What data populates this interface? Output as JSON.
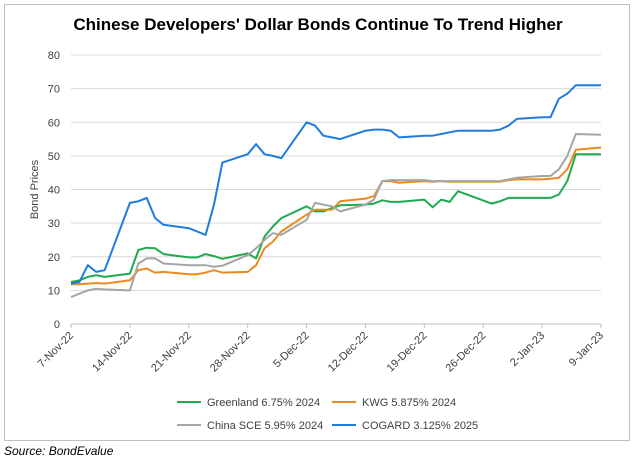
{
  "source": "Source: BondEvalue",
  "chart_data": {
    "type": "line",
    "title": "Chinese Developers' Dollar Bonds Continue To Trend Higher",
    "xlabel": "",
    "ylabel": "Bond Prices",
    "ylim": [
      0,
      80
    ],
    "yticks": [
      0,
      10,
      20,
      30,
      40,
      50,
      60,
      70,
      80
    ],
    "xrange": [
      "2022-11-07",
      "2023-01-09"
    ],
    "xticks": [
      {
        "date": "2022-11-07",
        "label": "7-Nov-22"
      },
      {
        "date": "2022-11-14",
        "label": "14-Nov-22"
      },
      {
        "date": "2022-11-21",
        "label": "21-Nov-22"
      },
      {
        "date": "2022-11-28",
        "label": "28-Nov-22"
      },
      {
        "date": "2022-12-05",
        "label": "5-Dec-22"
      },
      {
        "date": "2022-12-12",
        "label": "12-Dec-22"
      },
      {
        "date": "2022-12-19",
        "label": "19-Dec-22"
      },
      {
        "date": "2022-12-26",
        "label": "26-Dec-22"
      },
      {
        "date": "2023-01-02",
        "label": "2-Jan-23"
      },
      {
        "date": "2023-01-09",
        "label": "9-Jan-23"
      }
    ],
    "grid": true,
    "legend_position": "bottom",
    "series": [
      {
        "name": "Greenland 6.75% 2024",
        "color": "#1faa4f",
        "points": [
          [
            "2022-11-07",
            12.5
          ],
          [
            "2022-11-08",
            13
          ],
          [
            "2022-11-09",
            14
          ],
          [
            "2022-11-10",
            14.5
          ],
          [
            "2022-11-11",
            14
          ],
          [
            "2022-11-14",
            15
          ],
          [
            "2022-11-15",
            22
          ],
          [
            "2022-11-16",
            22.7
          ],
          [
            "2022-11-17",
            22.5
          ],
          [
            "2022-11-18",
            20.8
          ],
          [
            "2022-11-21",
            19.8
          ],
          [
            "2022-11-22",
            19.8
          ],
          [
            "2022-11-23",
            20.8
          ],
          [
            "2022-11-24",
            20.2
          ],
          [
            "2022-11-25",
            19.4
          ],
          [
            "2022-11-28",
            21
          ],
          [
            "2022-11-29",
            19.5
          ],
          [
            "2022-11-30",
            26
          ],
          [
            "2022-12-01",
            29
          ],
          [
            "2022-12-02",
            31.5
          ],
          [
            "2022-12-05",
            35
          ],
          [
            "2022-12-06",
            33.5
          ],
          [
            "2022-12-07",
            33.5
          ],
          [
            "2022-12-08",
            34.5
          ],
          [
            "2022-12-09",
            35.3
          ],
          [
            "2022-12-12",
            35.5
          ],
          [
            "2022-12-13",
            35.8
          ],
          [
            "2022-12-14",
            36.8
          ],
          [
            "2022-12-15",
            36.3
          ],
          [
            "2022-12-16",
            36.3
          ],
          [
            "2022-12-19",
            37
          ],
          [
            "2022-12-20",
            34.7
          ],
          [
            "2022-12-21",
            37
          ],
          [
            "2022-12-22",
            36.3
          ],
          [
            "2022-12-23",
            39.5
          ],
          [
            "2022-12-27",
            35.8
          ],
          [
            "2022-12-28",
            36.5
          ],
          [
            "2022-12-29",
            37.5
          ],
          [
            "2022-12-30",
            37.5
          ],
          [
            "2023-01-02",
            37.5
          ],
          [
            "2023-01-03",
            37.5
          ],
          [
            "2023-01-04",
            38.5
          ],
          [
            "2023-01-05",
            42.5
          ],
          [
            "2023-01-06",
            50.5
          ],
          [
            "2023-01-09",
            50.5
          ]
        ]
      },
      {
        "name": "KWG 5.875% 2024",
        "color": "#ed8a1f",
        "points": [
          [
            "2022-11-07",
            11.8
          ],
          [
            "2022-11-08",
            11.8
          ],
          [
            "2022-11-09",
            12
          ],
          [
            "2022-11-10",
            12.2
          ],
          [
            "2022-11-11",
            12
          ],
          [
            "2022-11-14",
            13
          ],
          [
            "2022-11-15",
            16
          ],
          [
            "2022-11-16",
            16.5
          ],
          [
            "2022-11-17",
            15.3
          ],
          [
            "2022-11-18",
            15.5
          ],
          [
            "2022-11-21",
            14.8
          ],
          [
            "2022-11-22",
            14.8
          ],
          [
            "2022-11-23",
            15.3
          ],
          [
            "2022-11-24",
            16
          ],
          [
            "2022-11-25",
            15.3
          ],
          [
            "2022-11-28",
            15.5
          ],
          [
            "2022-11-29",
            17.5
          ],
          [
            "2022-11-30",
            22.5
          ],
          [
            "2022-12-01",
            24.5
          ],
          [
            "2022-12-02",
            27.5
          ],
          [
            "2022-12-05",
            32.5
          ],
          [
            "2022-12-06",
            34
          ],
          [
            "2022-12-07",
            34
          ],
          [
            "2022-12-08",
            34
          ],
          [
            "2022-12-09",
            36.5
          ],
          [
            "2022-12-12",
            37.3
          ],
          [
            "2022-12-13",
            38
          ],
          [
            "2022-12-14",
            42.5
          ],
          [
            "2022-12-15",
            42.5
          ],
          [
            "2022-12-16",
            42
          ],
          [
            "2022-12-19",
            42.5
          ],
          [
            "2022-12-20",
            42.3
          ],
          [
            "2022-12-21",
            42.5
          ],
          [
            "2022-12-22",
            42.3
          ],
          [
            "2022-12-23",
            42.3
          ],
          [
            "2022-12-27",
            42.3
          ],
          [
            "2022-12-28",
            42.3
          ],
          [
            "2022-12-29",
            42.8
          ],
          [
            "2022-12-30",
            43
          ],
          [
            "2023-01-02",
            43
          ],
          [
            "2023-01-03",
            43.2
          ],
          [
            "2023-01-04",
            43.5
          ],
          [
            "2023-01-05",
            46
          ],
          [
            "2023-01-06",
            51.8
          ],
          [
            "2023-01-09",
            52.5
          ]
        ]
      },
      {
        "name": "China SCE 5.95% 2024",
        "color": "#a5a5a5",
        "points": [
          [
            "2022-11-07",
            8
          ],
          [
            "2022-11-08",
            9
          ],
          [
            "2022-11-09",
            10
          ],
          [
            "2022-11-10",
            10.5
          ],
          [
            "2022-11-11",
            10.3
          ],
          [
            "2022-11-14",
            10
          ],
          [
            "2022-11-15",
            18
          ],
          [
            "2022-11-16",
            19.5
          ],
          [
            "2022-11-17",
            19.5
          ],
          [
            "2022-11-18",
            18
          ],
          [
            "2022-11-21",
            17.5
          ],
          [
            "2022-11-22",
            17.5
          ],
          [
            "2022-11-23",
            17.5
          ],
          [
            "2022-11-24",
            17
          ],
          [
            "2022-11-25",
            17.3
          ],
          [
            "2022-11-28",
            20.5
          ],
          [
            "2022-11-29",
            22.5
          ],
          [
            "2022-11-30",
            25
          ],
          [
            "2022-12-01",
            27
          ],
          [
            "2022-12-02",
            26.5
          ],
          [
            "2022-12-05",
            31
          ],
          [
            "2022-12-06",
            36
          ],
          [
            "2022-12-07",
            35.5
          ],
          [
            "2022-12-08",
            35
          ],
          [
            "2022-12-09",
            33.5
          ],
          [
            "2022-12-12",
            35.5
          ],
          [
            "2022-12-13",
            37
          ],
          [
            "2022-12-14",
            42.5
          ],
          [
            "2022-12-15",
            42.8
          ],
          [
            "2022-12-16",
            42.8
          ],
          [
            "2022-12-19",
            42.8
          ],
          [
            "2022-12-20",
            42.5
          ],
          [
            "2022-12-21",
            42.5
          ],
          [
            "2022-12-22",
            42.5
          ],
          [
            "2022-12-23",
            42.5
          ],
          [
            "2022-12-27",
            42.5
          ],
          [
            "2022-12-28",
            42.5
          ],
          [
            "2022-12-29",
            43
          ],
          [
            "2022-12-30",
            43.5
          ],
          [
            "2023-01-02",
            44
          ],
          [
            "2023-01-03",
            44
          ],
          [
            "2023-01-04",
            46
          ],
          [
            "2023-01-05",
            50
          ],
          [
            "2023-01-06",
            56.5
          ],
          [
            "2023-01-09",
            56.3
          ]
        ]
      },
      {
        "name": "COGARD 3.125% 2025",
        "color": "#1f7be0",
        "points": [
          [
            "2022-11-07",
            12
          ],
          [
            "2022-11-08",
            12.5
          ],
          [
            "2022-11-09",
            17.5
          ],
          [
            "2022-11-10",
            15.5
          ],
          [
            "2022-11-11",
            16
          ],
          [
            "2022-11-14",
            36
          ],
          [
            "2022-11-15",
            36.5
          ],
          [
            "2022-11-16",
            37.5
          ],
          [
            "2022-11-17",
            31.5
          ],
          [
            "2022-11-18",
            29.5
          ],
          [
            "2022-11-21",
            28.5
          ],
          [
            "2022-11-22",
            27.5
          ],
          [
            "2022-11-23",
            26.5
          ],
          [
            "2022-11-24",
            35.5
          ],
          [
            "2022-11-25",
            48
          ],
          [
            "2022-11-28",
            50.5
          ],
          [
            "2022-11-29",
            53.5
          ],
          [
            "2022-11-30",
            50.5
          ],
          [
            "2022-12-01",
            50
          ],
          [
            "2022-12-02",
            49.3
          ],
          [
            "2022-12-05",
            60
          ],
          [
            "2022-12-06",
            59
          ],
          [
            "2022-12-07",
            56
          ],
          [
            "2022-12-08",
            55.5
          ],
          [
            "2022-12-09",
            55
          ],
          [
            "2022-12-12",
            57.5
          ],
          [
            "2022-12-13",
            57.8
          ],
          [
            "2022-12-14",
            57.8
          ],
          [
            "2022-12-15",
            57.5
          ],
          [
            "2022-12-16",
            55.5
          ],
          [
            "2022-12-19",
            56
          ],
          [
            "2022-12-20",
            56
          ],
          [
            "2022-12-21",
            56.5
          ],
          [
            "2022-12-22",
            57
          ],
          [
            "2022-12-23",
            57.5
          ],
          [
            "2022-12-27",
            57.5
          ],
          [
            "2022-12-28",
            57.8
          ],
          [
            "2022-12-29",
            59
          ],
          [
            "2022-12-30",
            61
          ],
          [
            "2023-01-02",
            61.5
          ],
          [
            "2023-01-03",
            61.5
          ],
          [
            "2023-01-04",
            67
          ],
          [
            "2023-01-05",
            68.5
          ],
          [
            "2023-01-06",
            71
          ],
          [
            "2023-01-09",
            71
          ]
        ]
      }
    ]
  }
}
